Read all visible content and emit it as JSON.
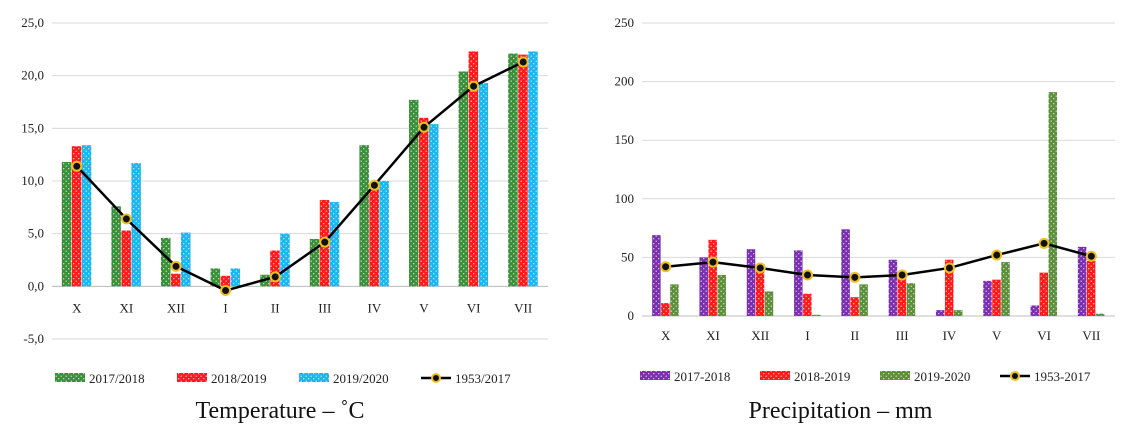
{
  "chart_data": [
    {
      "type": "bar",
      "title": "",
      "caption": "Temperature – ˚C",
      "categories": [
        "X",
        "XI",
        "XII",
        "I",
        "II",
        "III",
        "IV",
        "V",
        "VI",
        "VII"
      ],
      "ylim": [
        -5,
        25
      ],
      "yticks": [
        "-5,0",
        "0,0",
        "5,0",
        "10,0",
        "15,0",
        "20,0",
        "25,0"
      ],
      "ytick_values": [
        -5,
        0,
        5,
        10,
        15,
        20,
        25
      ],
      "grid": true,
      "legend": "bottom",
      "series": [
        {
          "name": "2017/2018",
          "kind": "bar",
          "color": "#3a8f3a",
          "values": [
            11.8,
            7.6,
            4.6,
            1.7,
            1.1,
            4.5,
            13.4,
            17.7,
            20.4,
            22.1
          ]
        },
        {
          "name": "2018/2019",
          "kind": "bar",
          "color": "#ff1a1a",
          "values": [
            13.3,
            5.3,
            1.2,
            1.0,
            3.4,
            8.2,
            9.4,
            16.0,
            22.3,
            22.0
          ]
        },
        {
          "name": "2019/2020",
          "kind": "bar",
          "color": "#19b6f0",
          "values": [
            13.4,
            11.7,
            5.1,
            1.7,
            5.0,
            8.0,
            10.0,
            15.4,
            19.3,
            22.3
          ]
        },
        {
          "name": "1953/2017",
          "kind": "line",
          "color": "#000000",
          "marker": "#f0c020",
          "values": [
            11.4,
            6.4,
            1.9,
            -0.4,
            0.9,
            4.2,
            9.6,
            15.1,
            19.0,
            21.3
          ]
        }
      ]
    },
    {
      "type": "bar",
      "title": "",
      "caption": "Precipitation – mm",
      "categories": [
        "X",
        "XI",
        "XII",
        "I",
        "II",
        "III",
        "IV",
        "V",
        "VI",
        "VII"
      ],
      "ylim": [
        0,
        250
      ],
      "yticks": [
        "0",
        "50",
        "100",
        "150",
        "200",
        "250"
      ],
      "ytick_values": [
        0,
        50,
        100,
        150,
        200,
        250
      ],
      "grid": true,
      "legend": "bottom",
      "series": [
        {
          "name": "2017-2018",
          "kind": "bar",
          "color": "#7a2fb0",
          "values": [
            69,
            50,
            57,
            56,
            74,
            48,
            5,
            30,
            9,
            59
          ]
        },
        {
          "name": "2018-2019",
          "kind": "bar",
          "color": "#ff1a1a",
          "values": [
            11,
            65,
            38,
            19,
            16,
            38,
            48,
            31,
            37,
            47
          ]
        },
        {
          "name": "2019-2020",
          "kind": "bar",
          "color": "#5b8f3a",
          "values": [
            27,
            35,
            21,
            1,
            27,
            28,
            5,
            46,
            191,
            2
          ]
        },
        {
          "name": "1953-2017",
          "kind": "line",
          "color": "#000000",
          "marker": "#f0c020",
          "values": [
            42,
            46,
            41,
            35,
            33,
            35,
            41,
            52,
            62,
            51
          ]
        }
      ]
    }
  ]
}
